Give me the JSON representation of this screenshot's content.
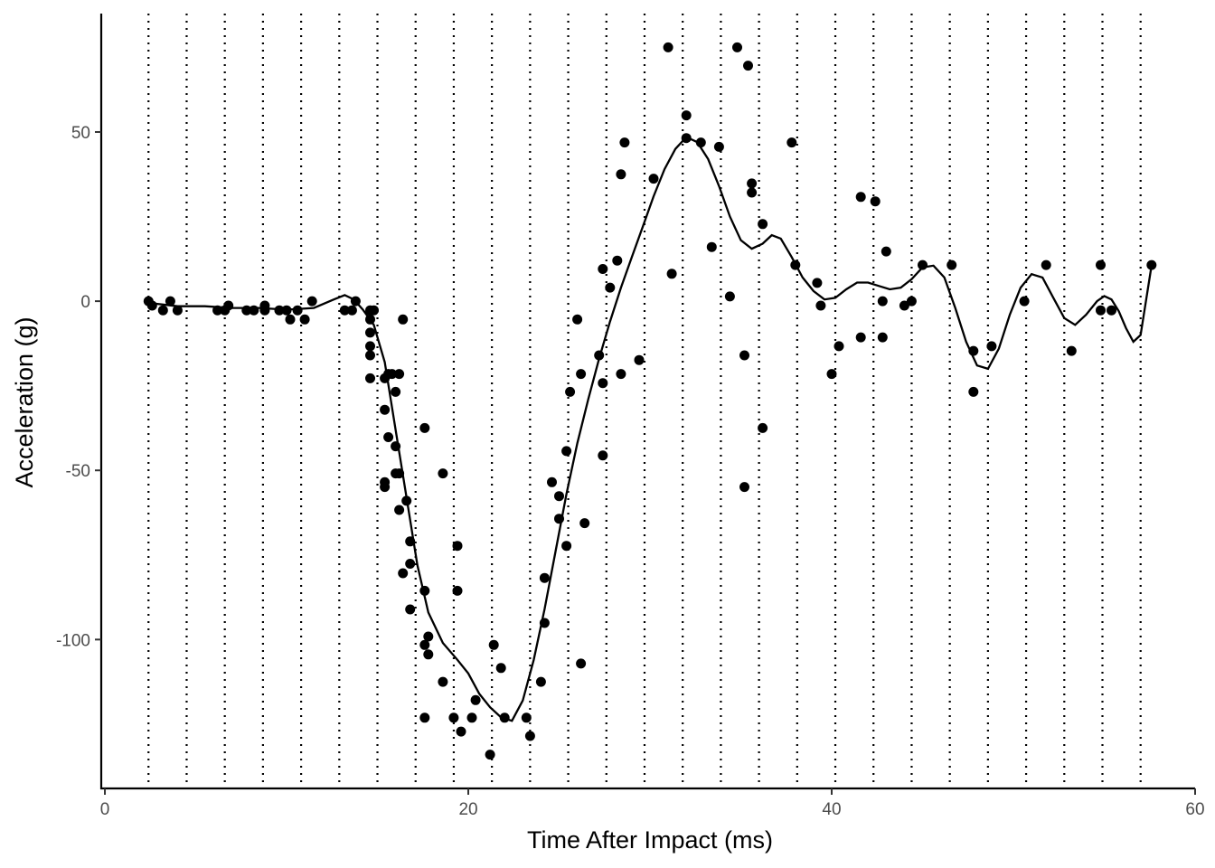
{
  "chart_data": {
    "type": "scatter",
    "title": "",
    "xlabel": "Time After Impact (ms)",
    "ylabel": "Acceleration (g)",
    "xlim": [
      -0.2,
      60
    ],
    "ylim": [
      -144,
      85
    ],
    "x_ticks": [
      0,
      20,
      40,
      60
    ],
    "y_ticks": [
      -100,
      -50,
      0,
      50
    ],
    "x_tick_labels": [
      "0",
      "20",
      "40",
      "60"
    ],
    "y_tick_labels": [
      "-100",
      "-50",
      "0",
      "50"
    ],
    "grid": false,
    "knots": [
      2.4,
      4.5,
      6.6,
      8.7,
      10.8,
      12.9,
      15.0,
      17.1,
      19.2,
      21.3,
      23.4,
      25.5,
      27.6,
      29.7,
      31.8,
      33.9,
      36.0,
      38.1,
      40.2,
      42.3,
      44.4,
      46.5,
      48.6,
      50.7,
      52.8,
      54.9,
      57.0
    ],
    "points": [
      [
        2.4,
        0.0
      ],
      [
        2.6,
        -1.3
      ],
      [
        3.2,
        -2.7
      ],
      [
        3.6,
        0.0
      ],
      [
        4.0,
        -2.7
      ],
      [
        6.2,
        -2.7
      ],
      [
        6.6,
        -2.7
      ],
      [
        6.8,
        -1.3
      ],
      [
        7.8,
        -2.7
      ],
      [
        8.2,
        -2.7
      ],
      [
        8.8,
        -1.3
      ],
      [
        8.8,
        -2.7
      ],
      [
        9.6,
        -2.7
      ],
      [
        10.0,
        -2.7
      ],
      [
        10.2,
        -5.4
      ],
      [
        10.6,
        -2.7
      ],
      [
        11.0,
        -5.4
      ],
      [
        11.4,
        0.0
      ],
      [
        13.2,
        -2.7
      ],
      [
        13.6,
        -2.7
      ],
      [
        13.8,
        0.0
      ],
      [
        14.6,
        -2.7
      ],
      [
        14.6,
        -5.4
      ],
      [
        14.6,
        -9.3
      ],
      [
        14.6,
        -13.3
      ],
      [
        14.6,
        -16.0
      ],
      [
        14.6,
        -22.8
      ],
      [
        14.8,
        -2.7
      ],
      [
        15.4,
        -22.8
      ],
      [
        15.4,
        -32.1
      ],
      [
        15.4,
        -53.5
      ],
      [
        15.4,
        -54.9
      ],
      [
        15.6,
        -21.5
      ],
      [
        15.6,
        -40.2
      ],
      [
        15.8,
        -21.5
      ],
      [
        16.0,
        -26.8
      ],
      [
        16.0,
        -42.9
      ],
      [
        16.0,
        -50.9
      ],
      [
        16.2,
        -21.5
      ],
      [
        16.2,
        -61.7
      ],
      [
        16.2,
        -50.9
      ],
      [
        16.4,
        -5.4
      ],
      [
        16.4,
        -80.4
      ],
      [
        16.6,
        -59.0
      ],
      [
        16.8,
        -71.0
      ],
      [
        16.8,
        -77.6
      ],
      [
        16.8,
        -91.1
      ],
      [
        17.6,
        -37.5
      ],
      [
        17.6,
        -85.6
      ],
      [
        17.6,
        -101.6
      ],
      [
        17.6,
        -123.1
      ],
      [
        17.8,
        -99.1
      ],
      [
        17.8,
        -104.4
      ],
      [
        18.6,
        -112.5
      ],
      [
        18.6,
        -50.9
      ],
      [
        19.2,
        -123.1
      ],
      [
        19.4,
        -72.3
      ],
      [
        19.4,
        -85.6
      ],
      [
        19.6,
        -127.2
      ],
      [
        20.2,
        -123.1
      ],
      [
        20.4,
        -117.9
      ],
      [
        21.2,
        -134.0
      ],
      [
        21.4,
        -101.6
      ],
      [
        21.8,
        -108.4
      ],
      [
        22.0,
        -123.1
      ],
      [
        23.2,
        -123.1
      ],
      [
        23.4,
        -128.5
      ],
      [
        24.0,
        -112.5
      ],
      [
        24.2,
        -95.1
      ],
      [
        24.2,
        -81.8
      ],
      [
        24.6,
        -53.5
      ],
      [
        25.0,
        -64.3
      ],
      [
        25.0,
        -57.6
      ],
      [
        25.4,
        -72.3
      ],
      [
        25.4,
        -44.3
      ],
      [
        25.6,
        -26.8
      ],
      [
        26.0,
        -5.4
      ],
      [
        26.2,
        -21.5
      ],
      [
        26.2,
        -107.1
      ],
      [
        26.4,
        -65.6
      ],
      [
        27.2,
        -16.0
      ],
      [
        27.4,
        9.5
      ],
      [
        27.4,
        -24.2
      ],
      [
        27.4,
        -45.6
      ],
      [
        27.8,
        4.0
      ],
      [
        28.2,
        12.0
      ],
      [
        28.4,
        -21.5
      ],
      [
        28.4,
        37.5
      ],
      [
        28.6,
        46.9
      ],
      [
        29.4,
        -17.4
      ],
      [
        30.2,
        36.2
      ],
      [
        31.0,
        75.0
      ],
      [
        31.2,
        8.1
      ],
      [
        32.0,
        48.2
      ],
      [
        32.0,
        54.9
      ],
      [
        32.8,
        46.9
      ],
      [
        33.4,
        16.0
      ],
      [
        33.8,
        45.6
      ],
      [
        34.4,
        1.4
      ],
      [
        34.8,
        75.0
      ],
      [
        35.2,
        -16.0
      ],
      [
        35.2,
        -54.9
      ],
      [
        35.4,
        69.6
      ],
      [
        35.6,
        32.1
      ],
      [
        35.6,
        34.8
      ],
      [
        36.2,
        22.8
      ],
      [
        36.2,
        -37.5
      ],
      [
        37.8,
        46.9
      ],
      [
        38.0,
        10.7
      ],
      [
        39.2,
        5.4
      ],
      [
        39.4,
        -1.3
      ],
      [
        40.0,
        -21.5
      ],
      [
        40.4,
        -13.3
      ],
      [
        41.6,
        30.8
      ],
      [
        41.6,
        -10.7
      ],
      [
        42.4,
        29.5
      ],
      [
        42.8,
        0.0
      ],
      [
        42.8,
        -10.7
      ],
      [
        43.0,
        14.7
      ],
      [
        44.0,
        -1.3
      ],
      [
        44.4,
        0.0
      ],
      [
        45.0,
        10.7
      ],
      [
        46.6,
        10.7
      ],
      [
        47.8,
        -14.7
      ],
      [
        47.8,
        -26.8
      ],
      [
        48.8,
        -13.3
      ],
      [
        50.6,
        0.0
      ],
      [
        51.8,
        10.7
      ],
      [
        53.2,
        -14.7
      ],
      [
        54.8,
        10.7
      ],
      [
        54.8,
        -2.7
      ],
      [
        55.4,
        -2.7
      ],
      [
        57.6,
        10.7
      ]
    ],
    "smooth_curve": [
      [
        2.4,
        -0.5
      ],
      [
        4.0,
        -1.5
      ],
      [
        5.5,
        -1.5
      ],
      [
        7.0,
        -2.0
      ],
      [
        8.5,
        -2.0
      ],
      [
        10.0,
        -2.5
      ],
      [
        11.5,
        -2.0
      ],
      [
        12.6,
        0.5
      ],
      [
        13.2,
        1.8
      ],
      [
        13.7,
        0.5
      ],
      [
        14.2,
        -2.5
      ],
      [
        14.8,
        -7.0
      ],
      [
        15.4,
        -18.0
      ],
      [
        16.0,
        -38.0
      ],
      [
        16.6,
        -58.0
      ],
      [
        17.2,
        -78.0
      ],
      [
        17.8,
        -92.0
      ],
      [
        18.6,
        -101.0
      ],
      [
        19.4,
        -106.0
      ],
      [
        20.0,
        -110.0
      ],
      [
        20.6,
        -116.0
      ],
      [
        21.2,
        -120.0
      ],
      [
        21.8,
        -123.0
      ],
      [
        22.4,
        -124.0
      ],
      [
        23.0,
        -118.0
      ],
      [
        23.6,
        -106.0
      ],
      [
        24.2,
        -91.0
      ],
      [
        24.8,
        -74.0
      ],
      [
        25.4,
        -57.0
      ],
      [
        26.0,
        -42.0
      ],
      [
        26.6,
        -29.0
      ],
      [
        27.2,
        -17.0
      ],
      [
        27.8,
        -6.0
      ],
      [
        28.4,
        4.0
      ],
      [
        29.0,
        13.0
      ],
      [
        29.6,
        22.0
      ],
      [
        30.2,
        31.0
      ],
      [
        30.8,
        39.0
      ],
      [
        31.4,
        45.0
      ],
      [
        32.0,
        48.5
      ],
      [
        32.6,
        47.0
      ],
      [
        33.2,
        42.0
      ],
      [
        33.8,
        34.0
      ],
      [
        34.4,
        25.0
      ],
      [
        35.0,
        18.0
      ],
      [
        35.6,
        15.5
      ],
      [
        36.2,
        17.0
      ],
      [
        36.7,
        19.5
      ],
      [
        37.2,
        18.5
      ],
      [
        37.8,
        13.0
      ],
      [
        38.4,
        7.0
      ],
      [
        39.0,
        3.0
      ],
      [
        39.6,
        0.5
      ],
      [
        40.2,
        1.0
      ],
      [
        40.8,
        3.5
      ],
      [
        41.4,
        5.5
      ],
      [
        42.0,
        5.5
      ],
      [
        42.6,
        4.5
      ],
      [
        43.2,
        3.5
      ],
      [
        43.8,
        4.0
      ],
      [
        44.4,
        6.5
      ],
      [
        45.0,
        10.0
      ],
      [
        45.6,
        10.5
      ],
      [
        46.2,
        7.0
      ],
      [
        46.8,
        -2.0
      ],
      [
        47.4,
        -12.0
      ],
      [
        48.0,
        -19.0
      ],
      [
        48.6,
        -20.0
      ],
      [
        49.2,
        -14.0
      ],
      [
        49.8,
        -4.0
      ],
      [
        50.4,
        4.0
      ],
      [
        51.0,
        8.0
      ],
      [
        51.6,
        7.0
      ],
      [
        52.2,
        1.0
      ],
      [
        52.8,
        -5.0
      ],
      [
        53.4,
        -7.0
      ],
      [
        54.0,
        -4.0
      ],
      [
        54.6,
        0.0
      ],
      [
        55.0,
        1.5
      ],
      [
        55.4,
        0.5
      ],
      [
        55.8,
        -3.0
      ],
      [
        56.2,
        -8.0
      ],
      [
        56.6,
        -12.0
      ],
      [
        57.0,
        -10.0
      ],
      [
        57.6,
        10.5
      ]
    ]
  }
}
